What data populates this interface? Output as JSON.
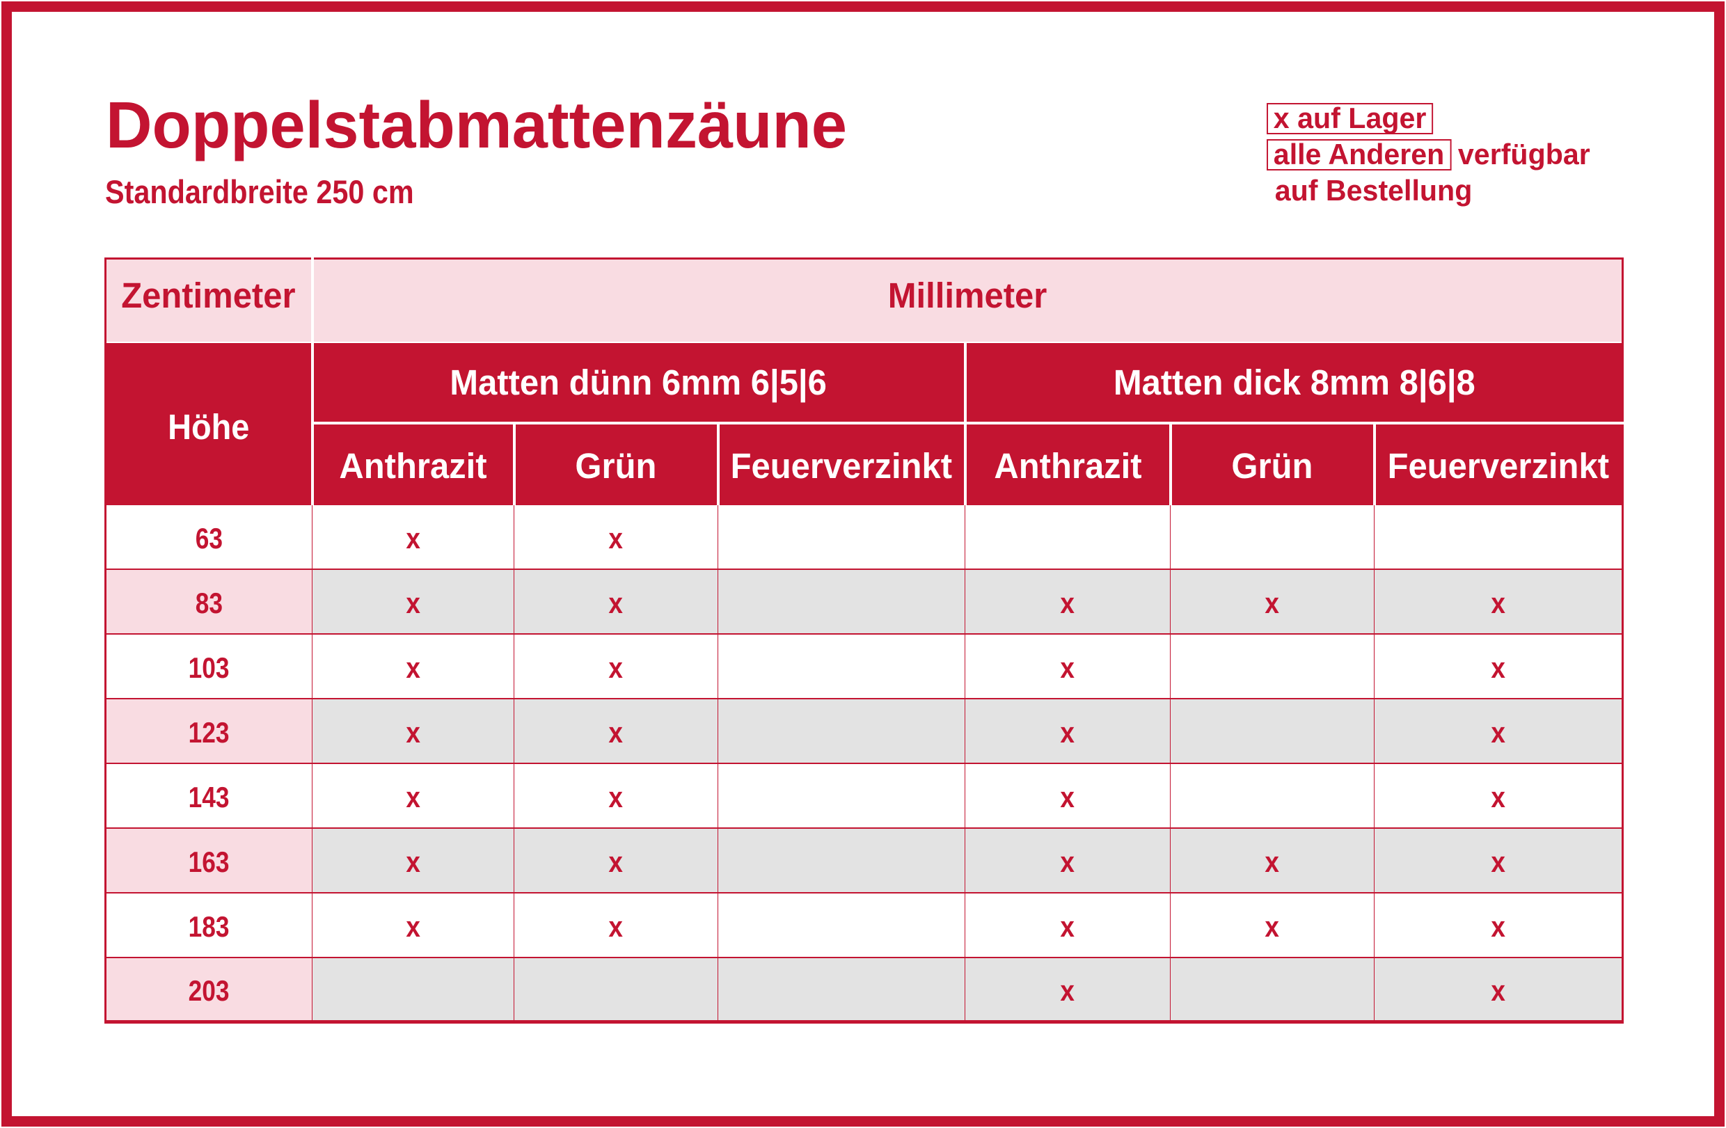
{
  "header": {
    "title": "Doppelstabmattenzäune",
    "subtitle": "Standardbreite 250 cm"
  },
  "legend": {
    "in_stock": "x auf Lager",
    "others_boxed": "alle Anderen",
    "others_suffix": "verfügbar",
    "on_order": "auf Bestellung"
  },
  "colors": {
    "accent_red": "#c31431",
    "light_pink": "#f9dce2",
    "light_gray": "#e3e3e3"
  },
  "table": {
    "unit_left": "Zentimeter",
    "unit_right": "Millimeter",
    "height_header": "Höhe",
    "groups": [
      {
        "label": "Matten dünn 6mm 6|5|6",
        "columns": [
          "Anthrazit",
          "Grün",
          "Feuerverzinkt"
        ]
      },
      {
        "label": "Matten dick 8mm 8|6|8",
        "columns": [
          "Anthrazit",
          "Grün",
          "Feuerverzinkt"
        ]
      }
    ],
    "mark": "x",
    "rows": [
      {
        "height": "63",
        "cells": [
          true,
          true,
          false,
          false,
          false,
          false
        ]
      },
      {
        "height": "83",
        "cells": [
          true,
          true,
          false,
          true,
          true,
          true
        ]
      },
      {
        "height": "103",
        "cells": [
          true,
          true,
          false,
          true,
          false,
          true
        ]
      },
      {
        "height": "123",
        "cells": [
          true,
          true,
          false,
          true,
          false,
          true
        ]
      },
      {
        "height": "143",
        "cells": [
          true,
          true,
          false,
          true,
          false,
          true
        ]
      },
      {
        "height": "163",
        "cells": [
          true,
          true,
          false,
          true,
          true,
          true
        ]
      },
      {
        "height": "183",
        "cells": [
          true,
          true,
          false,
          true,
          true,
          true
        ]
      },
      {
        "height": "203",
        "cells": [
          false,
          false,
          false,
          true,
          false,
          true
        ]
      }
    ]
  }
}
